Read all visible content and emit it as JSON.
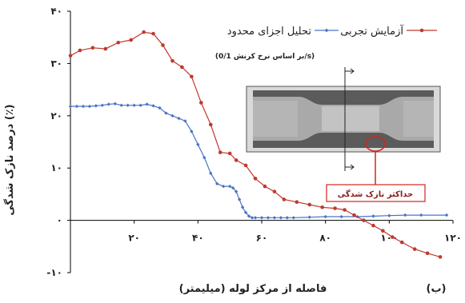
{
  "chart_data": {
    "type": "line",
    "xlabel": "فاصله از مرکز لوله (میلیمتر)",
    "ylabel": "درصد نازک شدگی (٪)",
    "panel_label": "(ب)",
    "xlim": [
      0,
      120
    ],
    "ylim": [
      -10,
      40
    ],
    "x_ticks": [
      {
        "value": 20,
        "label": "۲۰"
      },
      {
        "value": 40,
        "label": "۴۰"
      },
      {
        "value": 60,
        "label": "۶۰"
      },
      {
        "value": 80,
        "label": "۸۰"
      },
      {
        "value": 100,
        "label": "۱۰۰"
      },
      {
        "value": 120,
        "label": "۱۲۰"
      }
    ],
    "y_ticks": [
      {
        "value": -10,
        "label": "-۱۰"
      },
      {
        "value": 0,
        "label": "۰"
      },
      {
        "value": 10,
        "label": "۱۰"
      },
      {
        "value": 20,
        "label": "۲۰"
      },
      {
        "value": 30,
        "label": "۳۰"
      },
      {
        "value": 40,
        "label": "۴۰"
      }
    ],
    "grid": false,
    "legend_position": "top-right",
    "series": [
      {
        "name": "تحلیل اجزای محدود",
        "color": "#4a73c4",
        "marker": "diamond",
        "points": [
          [
            0,
            21.8
          ],
          [
            2,
            21.8
          ],
          [
            4,
            21.8
          ],
          [
            6,
            21.8
          ],
          [
            8,
            21.9
          ],
          [
            10,
            22
          ],
          [
            12,
            22.2
          ],
          [
            14,
            22.3
          ],
          [
            16,
            22
          ],
          [
            18,
            22
          ],
          [
            20,
            22
          ],
          [
            22,
            22
          ],
          [
            24,
            22.2
          ],
          [
            26,
            21.9
          ],
          [
            28,
            21.5
          ],
          [
            30,
            20.5
          ],
          [
            32,
            20
          ],
          [
            34,
            19.5
          ],
          [
            36,
            19
          ],
          [
            38,
            17
          ],
          [
            40,
            14.5
          ],
          [
            42,
            12
          ],
          [
            44,
            9
          ],
          [
            46,
            7
          ],
          [
            48,
            6.5
          ],
          [
            50,
            6.5
          ],
          [
            51,
            6.2
          ],
          [
            52,
            5.5
          ],
          [
            53,
            4
          ],
          [
            54,
            2.5
          ],
          [
            55,
            1.5
          ],
          [
            56,
            0.8
          ],
          [
            57,
            0.5
          ],
          [
            58,
            0.5
          ],
          [
            60,
            0.5
          ],
          [
            62,
            0.5
          ],
          [
            64,
            0.5
          ],
          [
            66,
            0.5
          ],
          [
            68,
            0.5
          ],
          [
            70,
            0.5
          ],
          [
            75,
            0.6
          ],
          [
            80,
            0.7
          ],
          [
            85,
            0.7
          ],
          [
            90,
            0.7
          ],
          [
            95,
            0.8
          ],
          [
            100,
            0.9
          ],
          [
            105,
            1
          ],
          [
            110,
            1
          ],
          [
            118,
            1
          ]
        ]
      },
      {
        "name": "آزمایش تجربی",
        "color": "#c0392b",
        "marker": "circle",
        "points": [
          [
            0,
            31.5
          ],
          [
            3,
            32.5
          ],
          [
            7,
            33
          ],
          [
            11,
            32.8
          ],
          [
            15,
            34
          ],
          [
            19,
            34.5
          ],
          [
            23,
            36
          ],
          [
            26,
            35.7
          ],
          [
            29,
            33.5
          ],
          [
            32,
            30.5
          ],
          [
            35,
            29.3
          ],
          [
            38,
            27.5
          ],
          [
            41,
            22.5
          ],
          [
            44,
            18.3
          ],
          [
            47,
            13
          ],
          [
            50,
            12.8
          ],
          [
            52,
            11.5
          ],
          [
            55,
            10.5
          ],
          [
            58,
            8
          ],
          [
            61,
            6.5
          ],
          [
            64,
            5.5
          ],
          [
            67,
            4
          ],
          [
            71,
            3.5
          ],
          [
            75,
            3
          ],
          [
            79,
            2.5
          ],
          [
            83,
            2.3
          ],
          [
            86,
            2
          ],
          [
            89,
            1
          ],
          [
            92,
            0
          ],
          [
            95,
            -1
          ],
          [
            98,
            -2
          ],
          [
            101,
            -3.2
          ],
          [
            104,
            -4.2
          ],
          [
            108,
            -5.5
          ],
          [
            112,
            -6.3
          ],
          [
            116,
            -7
          ]
        ]
      }
    ],
    "annotations": {
      "strain_rate_note": "(بر اساس نرخ کرنش 0/1/s)",
      "callout": "حداکثر نازک شدگی"
    }
  }
}
